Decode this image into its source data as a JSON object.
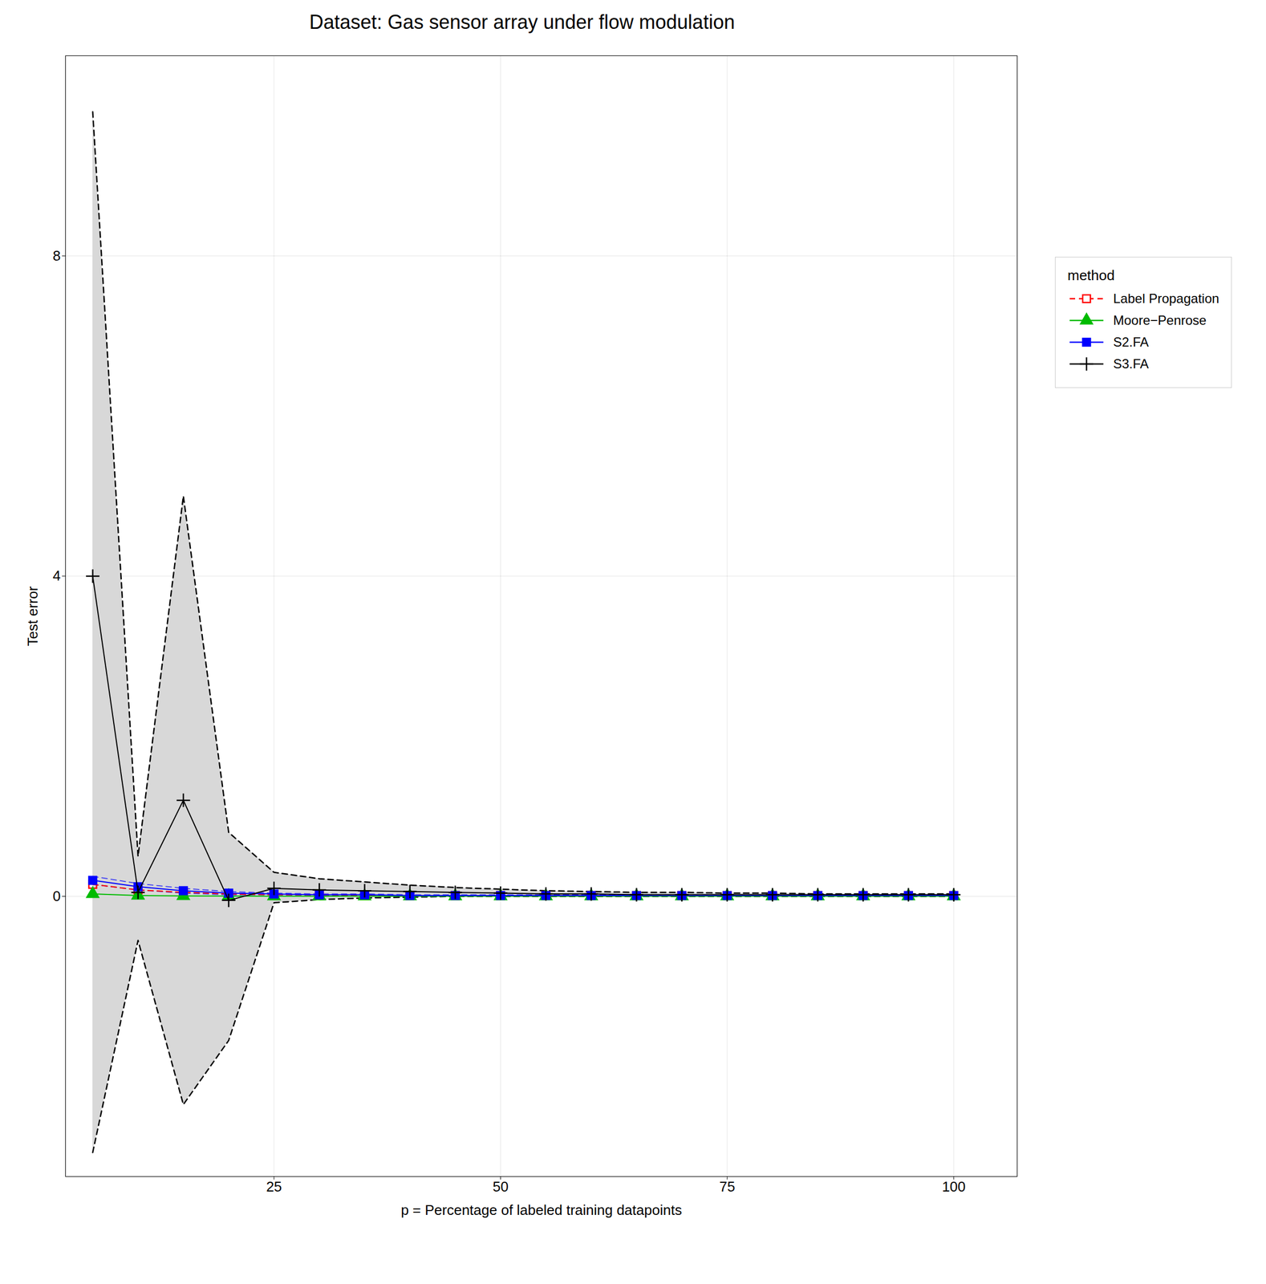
{
  "chart_data": {
    "type": "line",
    "title": "Dataset: Gas sensor array under flow modulation",
    "x_label": "p = Percentage of labeled training datapoints",
    "y_label": "Test error",
    "legend_title": "method",
    "x": [
      5,
      10,
      15,
      20,
      25,
      30,
      35,
      40,
      45,
      50,
      55,
      60,
      65,
      70,
      75,
      80,
      85,
      90,
      95,
      100
    ],
    "xlim": [
      2,
      107
    ],
    "ylim": [
      -3.5,
      10.5
    ],
    "xticks": [
      25,
      50,
      75,
      100
    ],
    "yticks": [
      0,
      4,
      8
    ],
    "grid": true,
    "legend": "right",
    "series": [
      {
        "name": "Label Propagation",
        "color": "#ff0000",
        "marker": "square_open",
        "line_style": "dashed",
        "values": [
          0.15,
          0.08,
          0.05,
          0.03,
          0.02,
          0.02,
          0.01,
          0.01,
          0.01,
          0.01,
          0.01,
          0.01,
          0.01,
          0.01,
          0.01,
          0.01,
          0.01,
          0.01,
          0.01,
          0.01
        ]
      },
      {
        "name": "Moore−Penrose",
        "color": "#00bb00",
        "marker": "triangle",
        "line_style": "solid",
        "values": [
          0.03,
          0.01,
          0.005,
          0.003,
          0.002,
          0.002,
          0.002,
          0.002,
          0.002,
          0.002,
          0.002,
          0.002,
          0.002,
          0.002,
          0.002,
          0.002,
          0.002,
          0.002,
          0.002,
          0.002
        ]
      },
      {
        "name": "S2.FA",
        "color": "#0000ff",
        "marker": "square",
        "line_style": "solid",
        "values": [
          0.2,
          0.12,
          0.07,
          0.04,
          0.03,
          0.02,
          0.02,
          0.01,
          0.01,
          0.01,
          0.01,
          0.01,
          0.01,
          0.01,
          0.01,
          0.01,
          0.01,
          0.01,
          0.01,
          0.01
        ],
        "upper": [
          0.25,
          0.16,
          0.1,
          0.06,
          0.04,
          0.03,
          0.03,
          0.02,
          0.02,
          0.02,
          0.02,
          0.02,
          0.02,
          0.02,
          0.02,
          0.02,
          0.02,
          0.02,
          0.02,
          0.02
        ],
        "lower": [
          0.15,
          0.08,
          0.04,
          0.02,
          0.02,
          0.01,
          0.01,
          0.005,
          0.005,
          0.005,
          0.005,
          0.005,
          0.005,
          0.005,
          0.005,
          0.005,
          0.005,
          0.005,
          0.005,
          0.005
        ]
      },
      {
        "name": "S3.FA",
        "color": "#000000",
        "marker": "plus",
        "line_style": "solid",
        "band_color": "#d8d8d8",
        "values": [
          4.0,
          0.05,
          1.2,
          -0.05,
          0.1,
          0.08,
          0.07,
          0.06,
          0.05,
          0.04,
          0.03,
          0.03,
          0.02,
          0.02,
          0.02,
          0.02,
          0.02,
          0.02,
          0.02,
          0.02
        ],
        "upper": [
          9.8,
          0.5,
          5.0,
          0.8,
          0.3,
          0.22,
          0.18,
          0.14,
          0.11,
          0.09,
          0.07,
          0.06,
          0.05,
          0.05,
          0.04,
          0.04,
          0.03,
          0.03,
          0.03,
          0.03
        ],
        "lower": [
          -3.2,
          -0.55,
          -2.6,
          -1.8,
          -0.08,
          -0.04,
          -0.02,
          -0.01,
          0.0,
          0.0,
          0.0,
          0.0,
          0.0,
          0.0,
          0.0,
          0.0,
          0.0,
          0.0,
          0.0,
          0.0
        ]
      }
    ]
  }
}
